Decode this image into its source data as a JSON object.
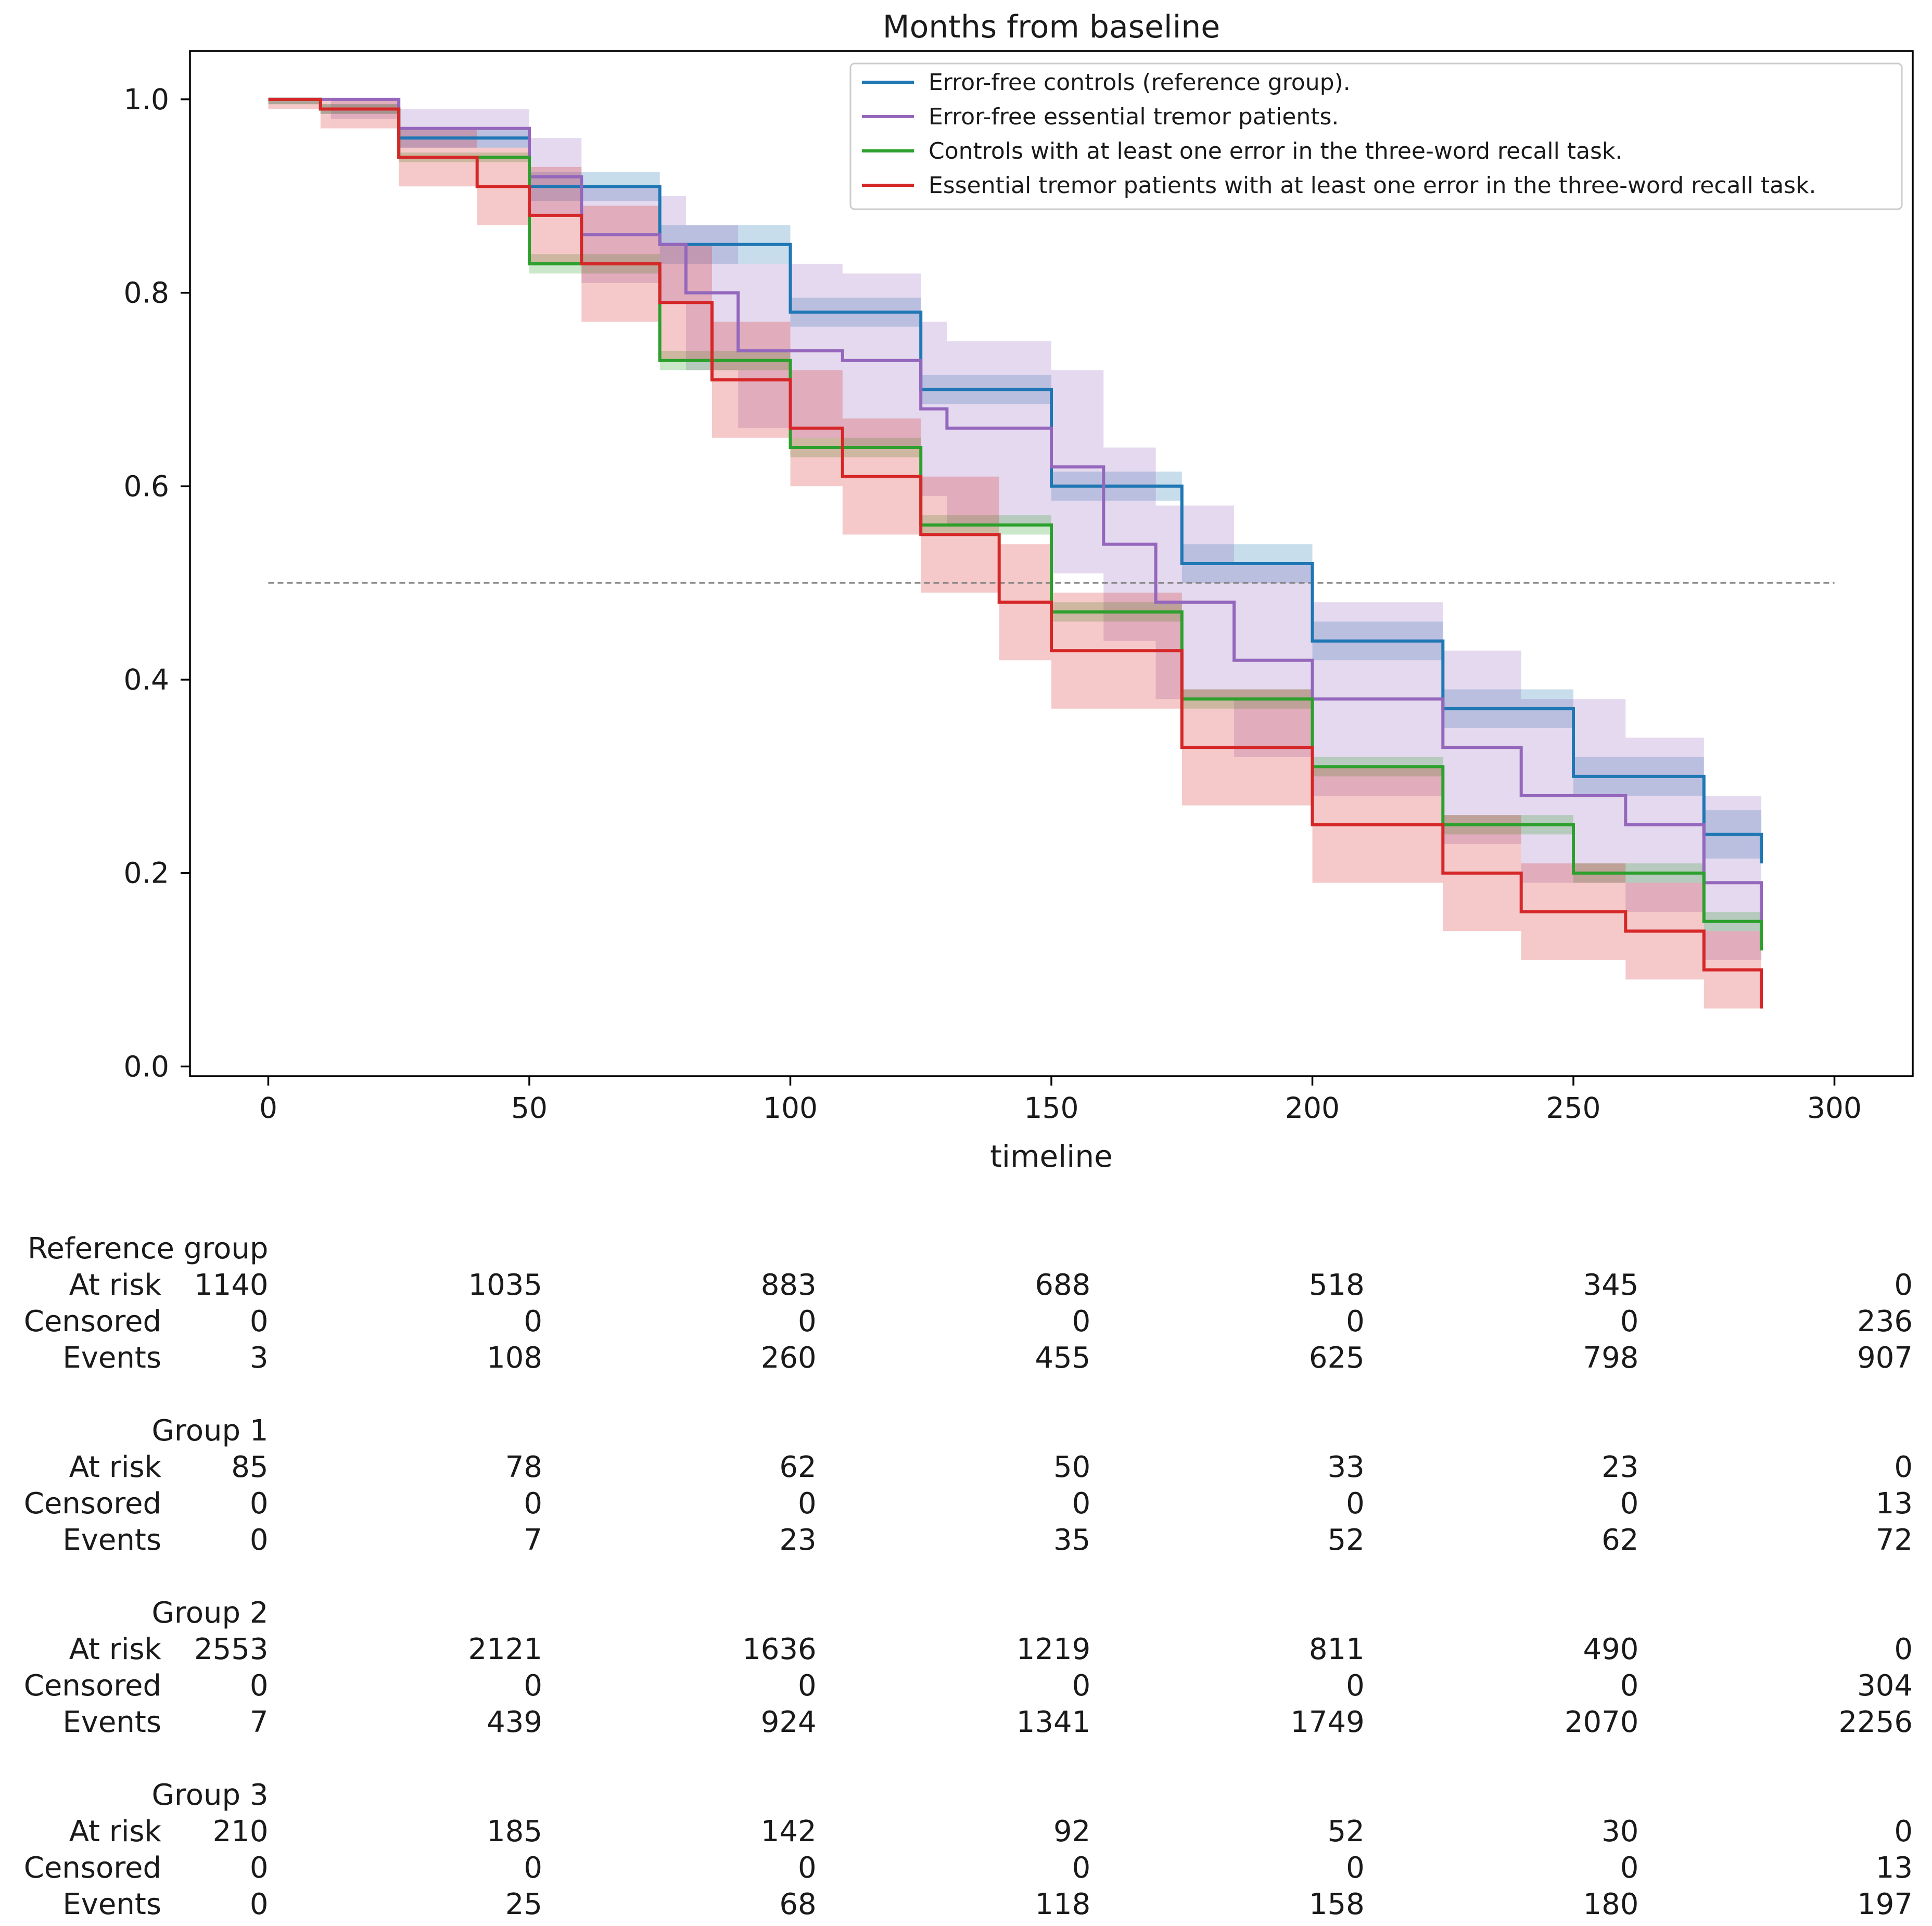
{
  "chart_data": {
    "type": "line",
    "title": "Months from baseline",
    "xlabel": "timeline",
    "ylabel": "",
    "xlim": [
      -15,
      315
    ],
    "ylim": [
      -0.01,
      1.05
    ],
    "xticks": [
      0,
      50,
      100,
      150,
      200,
      250,
      300
    ],
    "yticks": [
      0.0,
      0.2,
      0.4,
      0.6,
      0.8,
      1.0
    ],
    "xtick_labels": [
      "0",
      "50",
      "100",
      "150",
      "200",
      "250",
      "300"
    ],
    "ytick_labels": [
      "0.0",
      "0.2",
      "0.4",
      "0.6",
      "0.8",
      "1.0"
    ],
    "grid": false,
    "legend_position": "top-right",
    "reference_line": {
      "y": 0.5,
      "x_range": [
        0,
        300
      ],
      "style": "dashed",
      "color": "#808080"
    },
    "series": [
      {
        "name": "Error-free controls (reference group).",
        "color": "#1f77b4",
        "x": [
          0,
          10,
          25,
          50,
          75,
          100,
          125,
          150,
          175,
          200,
          225,
          250,
          275,
          286
        ],
        "y": [
          1.0,
          0.99,
          0.96,
          0.91,
          0.85,
          0.78,
          0.7,
          0.6,
          0.52,
          0.44,
          0.37,
          0.3,
          0.24,
          0.21
        ],
        "lower": [
          0.995,
          0.985,
          0.95,
          0.895,
          0.83,
          0.765,
          0.685,
          0.585,
          0.5,
          0.42,
          0.35,
          0.28,
          0.215,
          0.185
        ],
        "upper": [
          1.0,
          0.995,
          0.97,
          0.925,
          0.87,
          0.795,
          0.715,
          0.615,
          0.54,
          0.46,
          0.39,
          0.32,
          0.265,
          0.235
        ]
      },
      {
        "name": "Error-free essential tremor patients.",
        "color": "#9467bd",
        "x": [
          0,
          12,
          25,
          50,
          60,
          75,
          80,
          90,
          100,
          110,
          125,
          130,
          150,
          160,
          170,
          185,
          200,
          225,
          240,
          260,
          275,
          286
        ],
        "y": [
          1.0,
          1.0,
          0.97,
          0.92,
          0.86,
          0.85,
          0.8,
          0.74,
          0.74,
          0.73,
          0.68,
          0.66,
          0.62,
          0.54,
          0.48,
          0.42,
          0.38,
          0.33,
          0.28,
          0.25,
          0.19,
          0.15
        ],
        "lower": [
          1.0,
          0.98,
          0.95,
          0.88,
          0.81,
          0.79,
          0.72,
          0.66,
          0.65,
          0.64,
          0.59,
          0.56,
          0.51,
          0.44,
          0.38,
          0.32,
          0.28,
          0.23,
          0.19,
          0.16,
          0.11,
          0.09
        ],
        "upper": [
          1.0,
          1.0,
          0.99,
          0.96,
          0.91,
          0.9,
          0.87,
          0.83,
          0.83,
          0.82,
          0.77,
          0.75,
          0.72,
          0.64,
          0.58,
          0.52,
          0.48,
          0.43,
          0.38,
          0.34,
          0.28,
          0.24
        ]
      },
      {
        "name": "Controls with at least one error in the three-word recall task.",
        "color": "#2ca02c",
        "x": [
          0,
          10,
          25,
          50,
          75,
          100,
          125,
          150,
          175,
          200,
          225,
          250,
          275,
          286
        ],
        "y": [
          1.0,
          0.99,
          0.94,
          0.83,
          0.73,
          0.64,
          0.56,
          0.47,
          0.38,
          0.31,
          0.25,
          0.2,
          0.15,
          0.12
        ],
        "lower": [
          0.995,
          0.985,
          0.935,
          0.82,
          0.72,
          0.63,
          0.55,
          0.46,
          0.37,
          0.3,
          0.24,
          0.19,
          0.14,
          0.11
        ],
        "upper": [
          1.0,
          0.995,
          0.945,
          0.84,
          0.74,
          0.65,
          0.57,
          0.48,
          0.39,
          0.32,
          0.26,
          0.21,
          0.16,
          0.13
        ]
      },
      {
        "name": "Essential tremor patients with at least one error in the three-word recall task.",
        "color": "#d62728",
        "x": [
          0,
          10,
          25,
          40,
          50,
          60,
          75,
          85,
          100,
          110,
          125,
          140,
          150,
          175,
          200,
          225,
          240,
          260,
          275,
          286
        ],
        "y": [
          1.0,
          0.99,
          0.94,
          0.91,
          0.88,
          0.83,
          0.79,
          0.71,
          0.66,
          0.61,
          0.55,
          0.48,
          0.43,
          0.33,
          0.25,
          0.2,
          0.16,
          0.14,
          0.1,
          0.06
        ],
        "lower": [
          0.99,
          0.97,
          0.91,
          0.87,
          0.83,
          0.77,
          0.73,
          0.65,
          0.6,
          0.55,
          0.49,
          0.42,
          0.37,
          0.27,
          0.19,
          0.14,
          0.11,
          0.09,
          0.06,
          0.03
        ],
        "upper": [
          1.0,
          1.0,
          0.97,
          0.95,
          0.93,
          0.89,
          0.85,
          0.77,
          0.72,
          0.67,
          0.61,
          0.54,
          0.49,
          0.39,
          0.31,
          0.26,
          0.21,
          0.19,
          0.14,
          0.09
        ]
      }
    ],
    "risk_table": {
      "columns": [
        "0",
        "50",
        "100",
        "150",
        "200",
        "250",
        "300"
      ],
      "groups": [
        {
          "name": "Reference group",
          "rows": [
            {
              "label": "At risk",
              "values": [
                "1140",
                "1035",
                "883",
                "688",
                "518",
                "345",
                "0"
              ]
            },
            {
              "label": "Censored",
              "values": [
                "0",
                "0",
                "0",
                "0",
                "0",
                "0",
                "236"
              ]
            },
            {
              "label": "Events",
              "values": [
                "3",
                "108",
                "260",
                "455",
                "625",
                "798",
                "907"
              ]
            }
          ]
        },
        {
          "name": "Group 1",
          "rows": [
            {
              "label": "At risk",
              "values": [
                "85",
                "78",
                "62",
                "50",
                "33",
                "23",
                "0"
              ]
            },
            {
              "label": "Censored",
              "values": [
                "0",
                "0",
                "0",
                "0",
                "0",
                "0",
                "13"
              ]
            },
            {
              "label": "Events",
              "values": [
                "0",
                "7",
                "23",
                "35",
                "52",
                "62",
                "72"
              ]
            }
          ]
        },
        {
          "name": "Group 2",
          "rows": [
            {
              "label": "At risk",
              "values": [
                "2553",
                "2121",
                "1636",
                "1219",
                "811",
                "490",
                "0"
              ]
            },
            {
              "label": "Censored",
              "values": [
                "0",
                "0",
                "0",
                "0",
                "0",
                "0",
                "304"
              ]
            },
            {
              "label": "Events",
              "values": [
                "7",
                "439",
                "924",
                "1341",
                "1749",
                "2070",
                "2256"
              ]
            }
          ]
        },
        {
          "name": "Group 3",
          "rows": [
            {
              "label": "At risk",
              "values": [
                "210",
                "185",
                "142",
                "92",
                "52",
                "30",
                "0"
              ]
            },
            {
              "label": "Censored",
              "values": [
                "0",
                "0",
                "0",
                "0",
                "0",
                "0",
                "13"
              ]
            },
            {
              "label": "Events",
              "values": [
                "0",
                "25",
                "68",
                "118",
                "158",
                "180",
                "197"
              ]
            }
          ]
        }
      ]
    }
  }
}
